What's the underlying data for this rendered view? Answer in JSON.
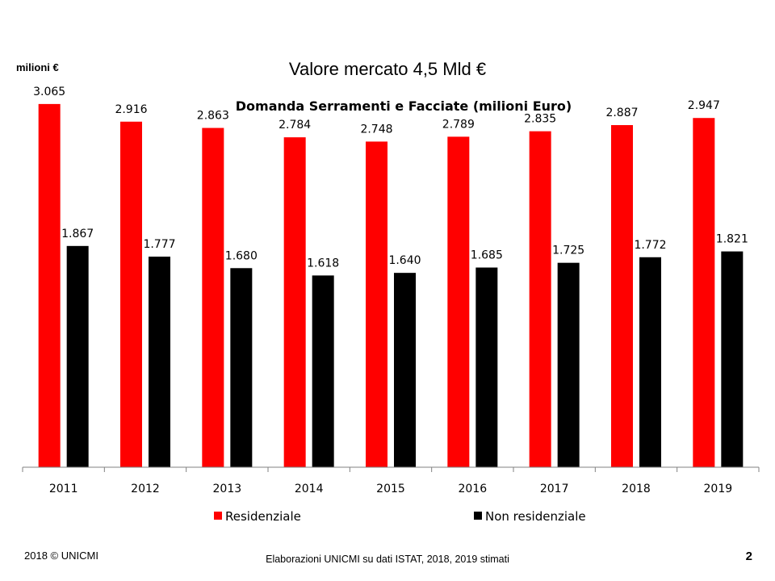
{
  "slide": {
    "unit_label": "milioni €",
    "headline": "Valore mercato 4,5 Mld €",
    "footer_left": "2018 © UNICMI",
    "footer_center": "Elaborazioni UNICMI su dati ISTAT, 2018, 2019 stimati",
    "page_number": "2"
  },
  "chart_data": {
    "type": "bar",
    "title": "Domanda Serramenti e Facciate (milioni Euro)",
    "categories": [
      "2011",
      "2012",
      "2013",
      "2014",
      "2015",
      "2016",
      "2017",
      "2018",
      "2019"
    ],
    "series": [
      {
        "name": "Residenziale",
        "color": "#ff0000",
        "values": [
          3065,
          2916,
          2863,
          2784,
          2748,
          2789,
          2835,
          2887,
          2947
        ],
        "labels": [
          "3.065",
          "2.916",
          "2.863",
          "2.784",
          "2.748",
          "2.789",
          "2.835",
          "2.887",
          "2.947"
        ]
      },
      {
        "name": "Non residenziale",
        "color": "#000000",
        "values": [
          1867,
          1777,
          1680,
          1618,
          1640,
          1685,
          1725,
          1772,
          1821
        ],
        "labels": [
          "1.867",
          "1.777",
          "1.680",
          "1.618",
          "1.640",
          "1.685",
          "1.725",
          "1.772",
          "1.821"
        ]
      }
    ],
    "ylim": [
      0,
      3500
    ],
    "grid": false,
    "legend_position": "bottom"
  }
}
